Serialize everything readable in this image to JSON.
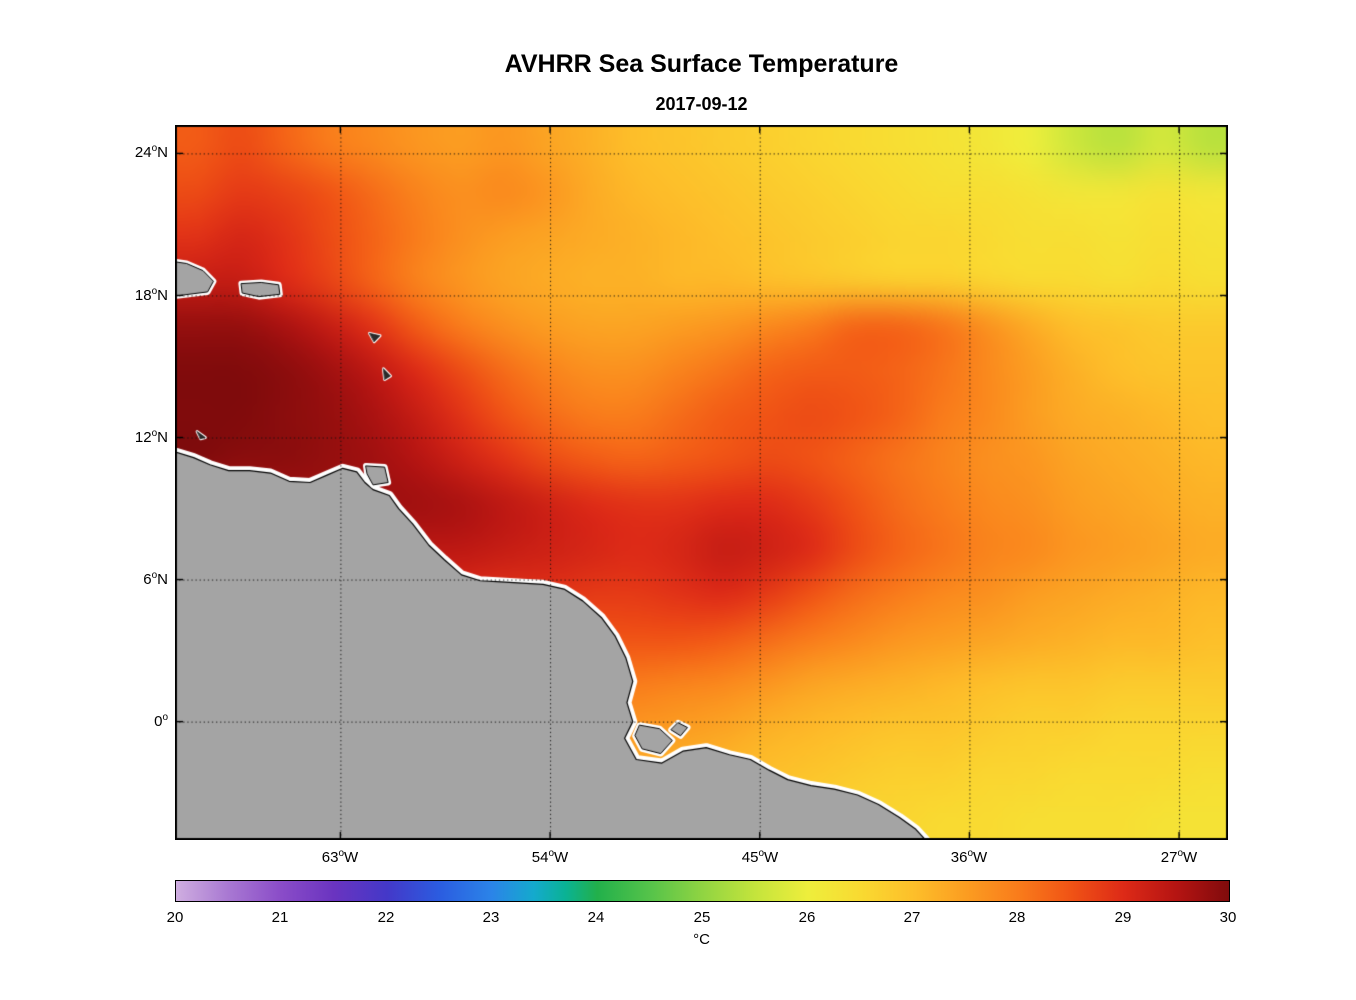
{
  "chart_data": {
    "type": "heatmap",
    "title": "AVHRR Sea Surface Temperature",
    "subtitle": "2017-09-12",
    "colorbar_label": "°C",
    "range": [
      20,
      30
    ],
    "colorbar_ticks": [
      "20",
      "21",
      "22",
      "23",
      "24",
      "25",
      "26",
      "27",
      "28",
      "29",
      "30"
    ],
    "lon_range": [
      -70.1,
      -24.9
    ],
    "lat_range": [
      -5.0,
      25.2
    ],
    "grid_lons": [
      -63,
      -54,
      -45,
      -36,
      -27
    ],
    "grid_lats": [
      24,
      18,
      12,
      6,
      0
    ],
    "lat_ticks": [
      {
        "num": "24",
        "deg": "o",
        "hemi": "N"
      },
      {
        "num": "18",
        "deg": "o",
        "hemi": "N"
      },
      {
        "num": "12",
        "deg": "o",
        "hemi": "N"
      },
      {
        "num": "6",
        "deg": "o",
        "hemi": "N"
      },
      {
        "num": "0",
        "deg": "o",
        "hemi": ""
      }
    ],
    "lon_ticks": [
      {
        "num": "63",
        "deg": "o",
        "hemi": "W"
      },
      {
        "num": "54",
        "deg": "o",
        "hemi": "W"
      },
      {
        "num": "45",
        "deg": "o",
        "hemi": "W"
      },
      {
        "num": "36",
        "deg": "o",
        "hemi": "W"
      },
      {
        "num": "27",
        "deg": "o",
        "hemi": "W"
      }
    ],
    "colormap": [
      {
        "v": 20.0,
        "c": "#cfaee0"
      },
      {
        "v": 20.5,
        "c": "#a878d2"
      },
      {
        "v": 21.0,
        "c": "#8a4cc8"
      },
      {
        "v": 21.5,
        "c": "#6a34c0"
      },
      {
        "v": 22.0,
        "c": "#4438c8"
      },
      {
        "v": 22.5,
        "c": "#2b5ce0"
      },
      {
        "v": 23.0,
        "c": "#2b84e8"
      },
      {
        "v": 23.4,
        "c": "#14aacd"
      },
      {
        "v": 23.7,
        "c": "#0ab294"
      },
      {
        "v": 24.0,
        "c": "#22b04b"
      },
      {
        "v": 24.5,
        "c": "#55c34a"
      },
      {
        "v": 25.0,
        "c": "#90d442"
      },
      {
        "v": 25.5,
        "c": "#c4e43c"
      },
      {
        "v": 26.0,
        "c": "#eeee3c"
      },
      {
        "v": 26.5,
        "c": "#f9da31"
      },
      {
        "v": 27.0,
        "c": "#fdbf2a"
      },
      {
        "v": 27.5,
        "c": "#fb9d21"
      },
      {
        "v": 28.0,
        "c": "#f97c1b"
      },
      {
        "v": 28.5,
        "c": "#f05315"
      },
      {
        "v": 29.0,
        "c": "#dd2a17"
      },
      {
        "v": 29.5,
        "c": "#b51412"
      },
      {
        "v": 30.0,
        "c": "#800b0c"
      }
    ],
    "grid": {
      "nx": 24,
      "ny": 16,
      "values": [
        [
          28.4,
          28.6,
          28.3,
          28.0,
          27.8,
          27.6,
          27.5,
          27.6,
          27.4,
          27.2,
          27.0,
          26.9,
          26.8,
          26.7,
          26.6,
          26.5,
          26.4,
          26.3,
          26.2,
          26.0,
          25.6,
          25.4,
          25.7,
          25.4
        ],
        [
          28.6,
          28.8,
          28.7,
          28.5,
          28.2,
          27.9,
          27.7,
          27.8,
          27.6,
          27.3,
          27.1,
          27.0,
          26.9,
          26.8,
          26.7,
          26.6,
          26.5,
          26.4,
          26.4,
          26.3,
          26.2,
          26.2,
          26.3,
          26.2
        ],
        [
          28.9,
          29.1,
          28.9,
          28.6,
          28.3,
          28.0,
          27.7,
          27.5,
          27.4,
          27.3,
          27.2,
          27.1,
          27.0,
          26.9,
          26.8,
          26.7,
          26.6,
          26.6,
          26.5,
          26.4,
          26.4,
          26.3,
          26.4,
          26.3
        ],
        [
          29.3,
          29.3,
          29.0,
          28.7,
          28.3,
          27.9,
          27.6,
          27.4,
          27.3,
          27.2,
          27.2,
          27.1,
          27.1,
          27.0,
          26.9,
          26.8,
          26.7,
          26.7,
          26.6,
          26.5,
          26.5,
          26.4,
          26.5,
          26.4
        ],
        [
          29.8,
          29.8,
          29.6,
          29.3,
          28.9,
          28.4,
          28.0,
          27.7,
          27.5,
          27.4,
          27.4,
          27.5,
          27.6,
          27.8,
          28.0,
          28.3,
          28.3,
          28.1,
          27.7,
          27.3,
          27.0,
          26.9,
          26.8,
          26.8
        ],
        [
          30.0,
          30.0,
          29.9,
          29.7,
          29.4,
          29.0,
          28.6,
          28.2,
          27.9,
          27.7,
          27.7,
          27.9,
          28.1,
          28.3,
          28.4,
          28.4,
          28.3,
          28.1,
          27.8,
          27.5,
          27.2,
          27.0,
          26.9,
          26.9
        ],
        [
          30.0,
          30.0,
          29.9,
          29.8,
          29.6,
          29.3,
          28.9,
          28.5,
          28.2,
          28.0,
          28.0,
          28.2,
          28.4,
          28.5,
          28.6,
          28.5,
          28.3,
          28.0,
          27.8,
          27.5,
          27.3,
          27.2,
          27.1,
          27.0
        ],
        [
          30.0,
          29.9,
          29.9,
          29.8,
          29.7,
          29.5,
          29.2,
          28.9,
          28.6,
          28.4,
          28.3,
          28.4,
          28.5,
          28.6,
          28.5,
          28.3,
          28.1,
          27.9,
          27.7,
          27.6,
          27.4,
          27.3,
          27.2,
          27.1
        ],
        [
          29.5,
          29.5,
          29.6,
          29.7,
          29.7,
          29.7,
          29.6,
          29.4,
          29.2,
          29.0,
          28.9,
          28.9,
          29.0,
          29.0,
          28.8,
          28.5,
          28.2,
          28.0,
          27.8,
          27.7,
          27.5,
          27.4,
          27.3,
          27.2
        ],
        [
          29.3,
          29.3,
          29.3,
          29.3,
          29.4,
          29.4,
          29.4,
          29.3,
          29.2,
          29.1,
          29.0,
          29.1,
          29.3,
          29.2,
          29.0,
          28.6,
          28.3,
          28.1,
          27.9,
          27.8,
          27.6,
          27.5,
          27.4,
          27.3
        ],
        [
          29.0,
          29.0,
          29.0,
          29.0,
          29.0,
          29.0,
          29.0,
          28.9,
          28.9,
          28.8,
          28.8,
          28.9,
          29.0,
          28.8,
          28.5,
          28.2,
          28.0,
          27.8,
          27.7,
          27.5,
          27.4,
          27.3,
          27.2,
          27.1
        ],
        [
          28.6,
          28.6,
          28.6,
          28.6,
          28.6,
          28.6,
          28.6,
          28.6,
          28.5,
          28.5,
          28.5,
          28.5,
          28.4,
          28.2,
          28.0,
          27.8,
          27.6,
          27.5,
          27.4,
          27.3,
          27.2,
          27.1,
          27.1,
          27.0
        ],
        [
          28.2,
          28.2,
          28.2,
          28.2,
          28.2,
          28.2,
          28.2,
          28.2,
          28.2,
          28.1,
          28.0,
          27.9,
          27.8,
          27.6,
          27.4,
          27.3,
          27.2,
          27.1,
          27.0,
          26.9,
          26.9,
          26.8,
          26.8,
          26.8
        ],
        [
          27.8,
          27.8,
          27.8,
          27.8,
          27.8,
          27.8,
          27.8,
          27.8,
          27.8,
          27.7,
          27.6,
          27.5,
          27.4,
          27.2,
          27.1,
          27.0,
          26.9,
          26.9,
          26.8,
          26.7,
          26.7,
          26.6,
          26.6,
          26.6
        ],
        [
          27.4,
          27.4,
          27.4,
          27.4,
          27.4,
          27.4,
          27.4,
          27.4,
          27.4,
          27.4,
          27.3,
          27.2,
          27.1,
          27.0,
          26.9,
          26.8,
          26.7,
          26.7,
          26.6,
          26.6,
          26.5,
          26.5,
          26.5,
          26.4
        ],
        [
          27.2,
          27.2,
          27.2,
          27.2,
          27.2,
          27.2,
          27.2,
          27.2,
          27.2,
          27.2,
          27.1,
          27.0,
          26.9,
          26.8,
          26.7,
          26.6,
          26.6,
          26.5,
          26.5,
          26.4,
          26.4,
          26.4,
          26.3,
          26.3
        ]
      ]
    },
    "land": {
      "color": "#a4a4a4",
      "coast": [
        [
          -70.3,
          11.45
        ],
        [
          -69.3,
          11.15
        ],
        [
          -68.6,
          10.85
        ],
        [
          -67.8,
          10.6
        ],
        [
          -66.9,
          10.6
        ],
        [
          -66.0,
          10.5
        ],
        [
          -65.2,
          10.15
        ],
        [
          -64.3,
          10.1
        ],
        [
          -63.6,
          10.4
        ],
        [
          -62.9,
          10.7
        ],
        [
          -62.3,
          10.55
        ],
        [
          -61.95,
          10.1
        ],
        [
          -61.6,
          9.8
        ],
        [
          -60.9,
          9.55
        ],
        [
          -60.5,
          9.0
        ],
        [
          -59.9,
          8.35
        ],
        [
          -59.2,
          7.45
        ],
        [
          -58.55,
          6.85
        ],
        [
          -57.8,
          6.2
        ],
        [
          -57.0,
          5.95
        ],
        [
          -56.1,
          5.9
        ],
        [
          -55.2,
          5.85
        ],
        [
          -54.3,
          5.8
        ],
        [
          -53.4,
          5.6
        ],
        [
          -52.6,
          5.1
        ],
        [
          -51.8,
          4.4
        ],
        [
          -51.2,
          3.6
        ],
        [
          -50.75,
          2.7
        ],
        [
          -50.45,
          1.7
        ],
        [
          -50.7,
          0.8
        ],
        [
          -50.45,
          0.0
        ],
        [
          -50.8,
          -0.7
        ],
        [
          -50.3,
          -1.6
        ],
        [
          -49.2,
          -1.75
        ],
        [
          -48.3,
          -1.25
        ],
        [
          -47.3,
          -1.1
        ],
        [
          -46.3,
          -1.4
        ],
        [
          -45.4,
          -1.6
        ],
        [
          -44.6,
          -2.05
        ],
        [
          -43.8,
          -2.45
        ],
        [
          -42.8,
          -2.7
        ],
        [
          -41.8,
          -2.85
        ],
        [
          -40.8,
          -3.1
        ],
        [
          -39.9,
          -3.5
        ],
        [
          -39.0,
          -4.05
        ],
        [
          -38.3,
          -4.55
        ],
        [
          -37.6,
          -5.3
        ],
        [
          -70.3,
          -5.3
        ]
      ],
      "islands": [
        {
          "kind": "land",
          "pts": [
            [
              -70.3,
              19.45
            ],
            [
              -69.6,
              19.35
            ],
            [
              -68.9,
              19.05
            ],
            [
              -68.45,
              18.6
            ],
            [
              -68.7,
              18.15
            ],
            [
              -69.5,
              18.05
            ],
            [
              -70.3,
              17.95
            ]
          ]
        },
        {
          "kind": "land",
          "pts": [
            [
              -67.25,
              18.5
            ],
            [
              -66.4,
              18.55
            ],
            [
              -65.65,
              18.45
            ],
            [
              -65.6,
              18.05
            ],
            [
              -66.5,
              17.95
            ],
            [
              -67.2,
              18.1
            ]
          ]
        },
        {
          "kind": "land",
          "pts": [
            [
              -61.9,
              10.8
            ],
            [
              -61.1,
              10.75
            ],
            [
              -60.95,
              10.1
            ],
            [
              -61.6,
              10.0
            ],
            [
              -61.85,
              10.45
            ]
          ]
        },
        {
          "kind": "land",
          "pts": [
            [
              -50.15,
              -0.15
            ],
            [
              -49.3,
              -0.3
            ],
            [
              -48.75,
              -0.8
            ],
            [
              -49.25,
              -1.35
            ],
            [
              -50.05,
              -1.15
            ],
            [
              -50.35,
              -0.6
            ]
          ]
        },
        {
          "kind": "land",
          "pts": [
            [
              -48.5,
              -0.05
            ],
            [
              -48.1,
              -0.25
            ],
            [
              -48.4,
              -0.6
            ],
            [
              -48.8,
              -0.35
            ]
          ]
        },
        {
          "kind": "speck",
          "pts": [
            [
              -61.75,
              16.4
            ],
            [
              -61.3,
              16.3
            ],
            [
              -61.55,
              16.05
            ]
          ]
        },
        {
          "kind": "speck",
          "pts": [
            [
              -61.15,
              14.9
            ],
            [
              -60.85,
              14.6
            ],
            [
              -61.1,
              14.45
            ]
          ]
        },
        {
          "kind": "speck",
          "pts": [
            [
              -69.15,
              12.25
            ],
            [
              -68.8,
              12.0
            ],
            [
              -69.0,
              11.95
            ]
          ]
        }
      ]
    }
  }
}
